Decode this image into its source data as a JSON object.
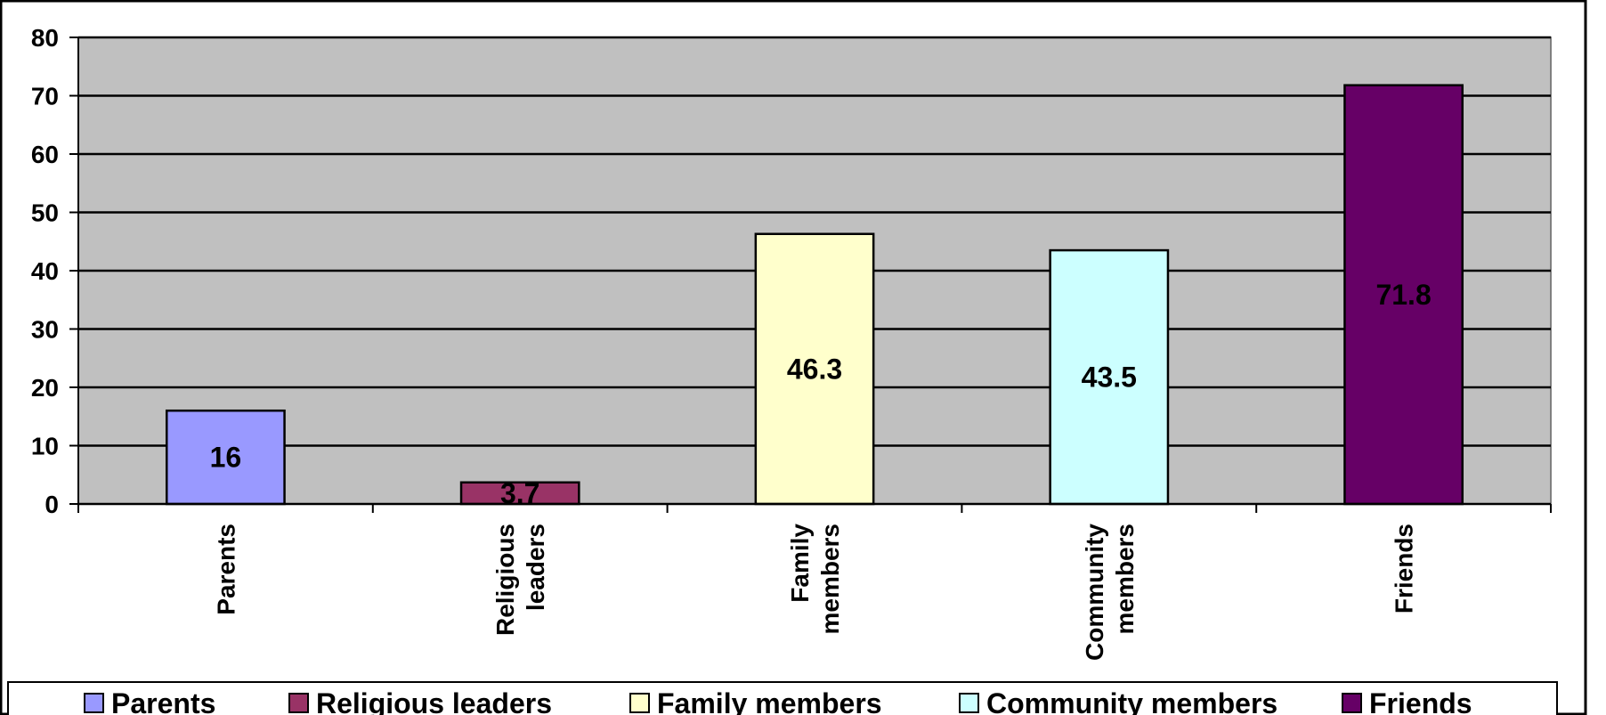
{
  "chart_data": {
    "type": "bar",
    "categories": [
      "Parents",
      "Religious leaders",
      "Family members",
      "Community members",
      "Friends"
    ],
    "category_label_lines": [
      [
        "Parents"
      ],
      [
        "Religious",
        "leaders"
      ],
      [
        "Family",
        "members"
      ],
      [
        "Community",
        "members"
      ],
      [
        "Friends"
      ]
    ],
    "values": [
      16,
      3.7,
      46.3,
      43.5,
      71.8
    ],
    "data_labels": [
      "16",
      "3.7",
      "46.3",
      "43.5",
      "71.8"
    ],
    "colors": [
      "#9999ff",
      "#993366",
      "#ffffcc",
      "#ccffff",
      "#660066"
    ],
    "ylim": [
      0,
      80
    ],
    "yticks": [
      0,
      10,
      20,
      30,
      40,
      50,
      60,
      70,
      80
    ],
    "title": "",
    "xlabel": "",
    "ylabel": "",
    "grid": true,
    "plot_background": "#c0c0c0",
    "legend": {
      "position": "bottom",
      "entries": [
        "Parents",
        "Religious leaders",
        "Family members",
        "Community members",
        "Friends"
      ]
    }
  }
}
